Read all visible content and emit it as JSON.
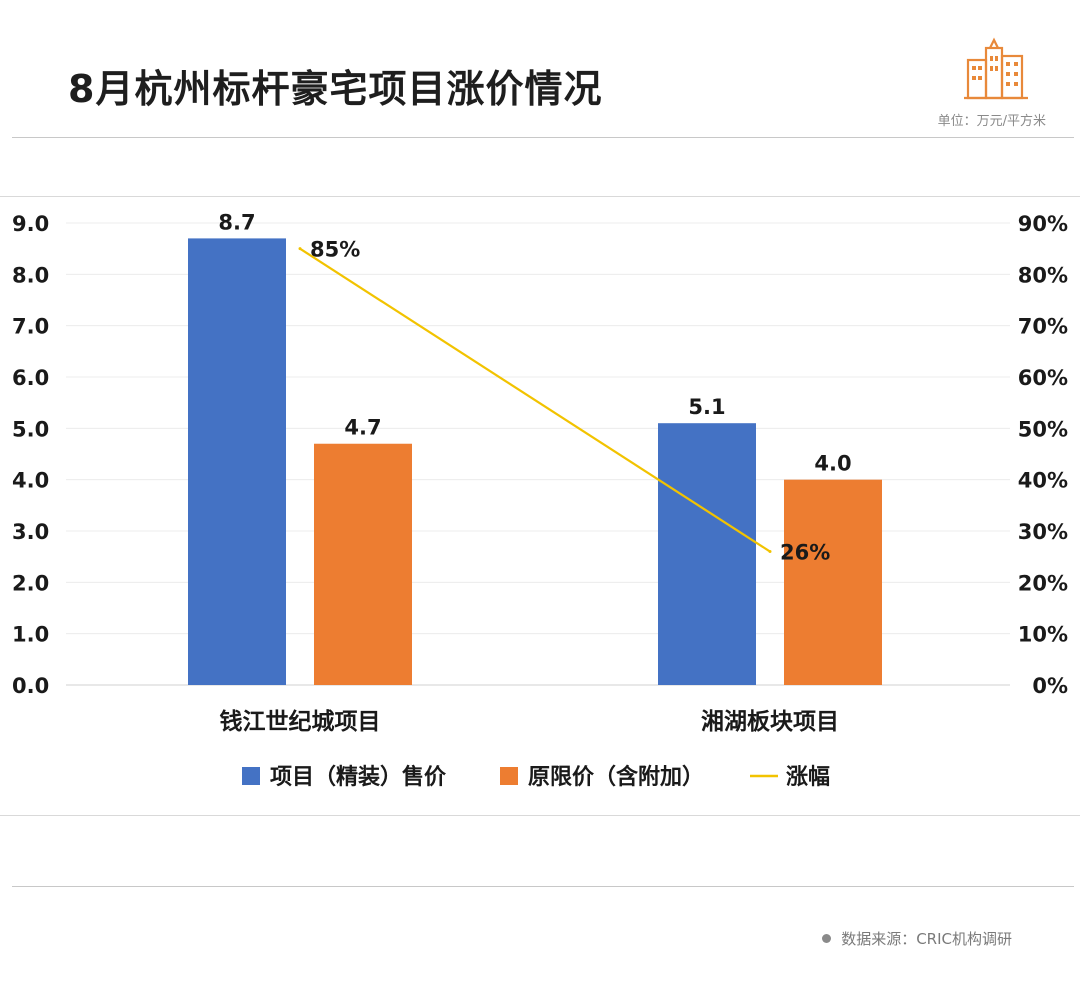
{
  "header": {
    "title": "8月杭州标杆豪宅项目涨价情况",
    "unit": "单位：万元/平方米",
    "logo_icon": "building-icon"
  },
  "footer": {
    "source": "数据来源：CRIC机构调研"
  },
  "colors": {
    "blue": "#4472C4",
    "orange": "#ED7D31",
    "line": "#F2C300",
    "logo": "#E8893A"
  },
  "chart_data": {
    "type": "bar",
    "title": "",
    "categories": [
      "钱江世纪城项目",
      "湘湖板块项目"
    ],
    "series": [
      {
        "name": "项目（精装）售价",
        "values": [
          8.7,
          5.1
        ],
        "axis": "left",
        "kind": "bar"
      },
      {
        "name": "原限价（含附加）",
        "values": [
          4.7,
          4.0
        ],
        "axis": "left",
        "kind": "bar"
      },
      {
        "name": "涨幅",
        "values": [
          85,
          26
        ],
        "axis": "right",
        "kind": "line"
      }
    ],
    "value_labels": {
      "bars": [
        "8.7",
        "4.7",
        "5.1",
        "4.0"
      ],
      "line": [
        "85%",
        "26%"
      ]
    },
    "y_left": {
      "min": 0,
      "max": 9,
      "step": 1,
      "ticks": [
        "0.0",
        "1.0",
        "2.0",
        "3.0",
        "4.0",
        "5.0",
        "6.0",
        "7.0",
        "8.0",
        "9.0"
      ]
    },
    "y_right": {
      "min": 0,
      "max": 90,
      "step": 10,
      "ticks": [
        "0%",
        "10%",
        "20%",
        "30%",
        "40%",
        "50%",
        "60%",
        "70%",
        "80%",
        "90%"
      ]
    },
    "grid": true,
    "legend_position": "bottom"
  }
}
